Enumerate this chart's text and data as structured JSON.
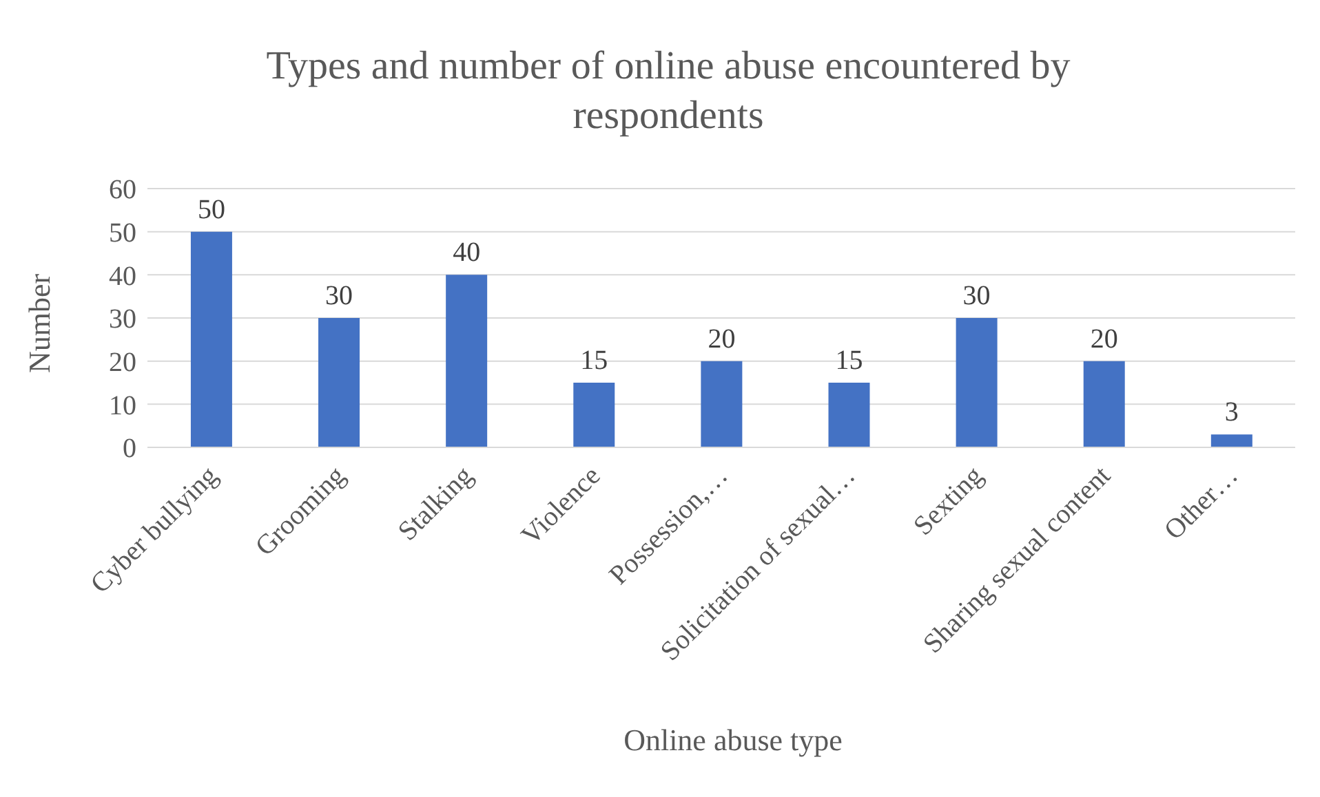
{
  "chart_data": {
    "type": "bar",
    "title": "Types and number of online abuse encountered by respondents",
    "xlabel": "Online abuse type",
    "ylabel": "Number",
    "categories": [
      "Cyber bullying",
      "Grooming",
      "Stalking",
      "Violence",
      "Possession,…",
      "Solicitation of sexual…",
      "Sexting",
      "Sharing sexual content",
      "Other…"
    ],
    "values": [
      50,
      30,
      40,
      15,
      20,
      15,
      30,
      20,
      3
    ],
    "color": "#4472c4",
    "ylim": [
      0,
      60
    ],
    "yticks": [
      0,
      10,
      20,
      30,
      40,
      50,
      60
    ],
    "grid": "y",
    "data_labels": true,
    "legend": false
  }
}
